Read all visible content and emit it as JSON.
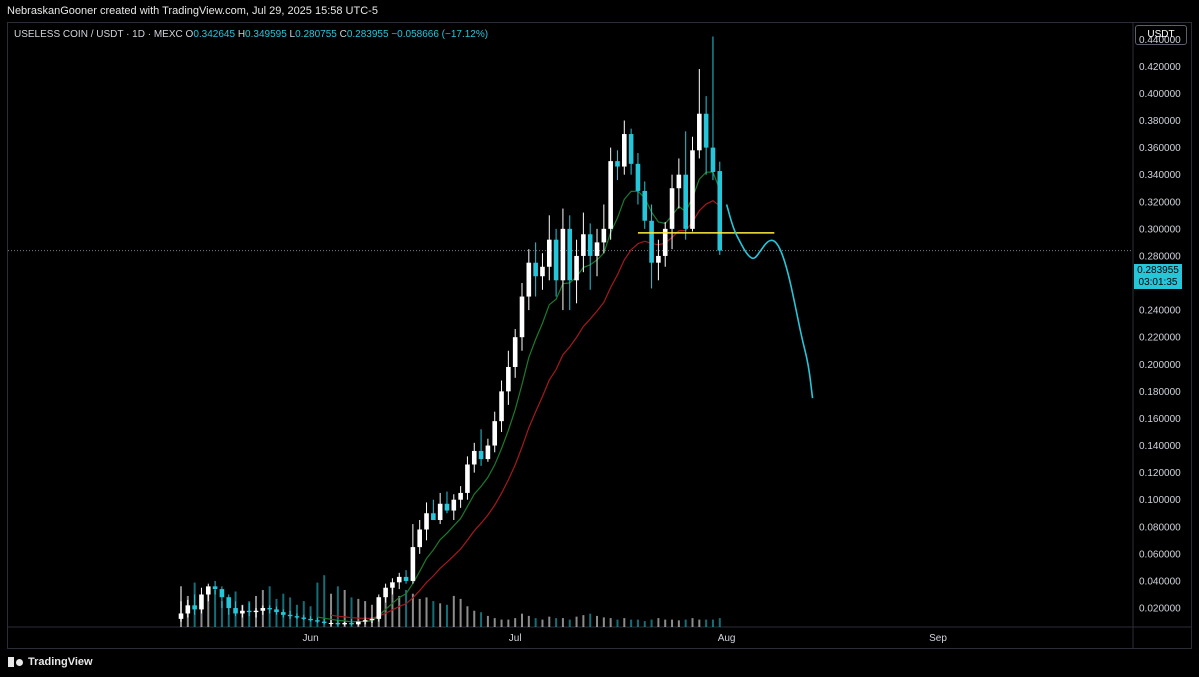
{
  "header": {
    "author_line": "NebraskanGooner created with TradingView.com, Jul 29, 2025 15:58 UTC-5"
  },
  "legend": {
    "symbol": "USELESS COIN / USDT · 1D · MEXC",
    "open_label": "O",
    "open": "0.342645",
    "high_label": "H",
    "high": "0.349595",
    "low_label": "L",
    "low": "0.280755",
    "close_label": "C",
    "close": "0.283955",
    "change": "−0.058666 (−17.12%)"
  },
  "currency": "USDT",
  "price_tag": {
    "price": "0.283955",
    "countdown": "03:01:35"
  },
  "footer": {
    "brand": "TradingView"
  },
  "colors": {
    "up": "#ffffff",
    "down": "#26c6da",
    "ma_fast": "#1b7a2c",
    "ma_slow": "#a5191e",
    "level": "#ffeb3b",
    "projection": "#26c6da"
  },
  "chart_data": {
    "type": "candlestick",
    "x_axis": {
      "ticks": [
        {
          "label": "Jun",
          "index": 19
        },
        {
          "label": "Jul",
          "index": 49
        },
        {
          "label": "Aug",
          "index": 80
        },
        {
          "label": "Sep",
          "index": 111
        }
      ]
    },
    "y_axis": {
      "ylim": [
        0.006,
        0.452
      ],
      "ticks": [
        0.02,
        0.04,
        0.06,
        0.08,
        0.1,
        0.12,
        0.14,
        0.16,
        0.18,
        0.2,
        0.22,
        0.24,
        0.26,
        0.28,
        0.3,
        0.32,
        0.34,
        0.36,
        0.38,
        0.4,
        0.42,
        0.44
      ]
    },
    "current_price": 0.283955,
    "candles": [
      {
        "o": 0.012,
        "h": 0.025,
        "l": 0.01,
        "c": 0.016
      },
      {
        "o": 0.016,
        "h": 0.026,
        "l": 0.013,
        "c": 0.022
      },
      {
        "o": 0.022,
        "h": 0.03,
        "l": 0.015,
        "c": 0.019
      },
      {
        "o": 0.019,
        "h": 0.035,
        "l": 0.016,
        "c": 0.03
      },
      {
        "o": 0.03,
        "h": 0.038,
        "l": 0.025,
        "c": 0.036
      },
      {
        "o": 0.036,
        "h": 0.04,
        "l": 0.03,
        "c": 0.034
      },
      {
        "o": 0.034,
        "h": 0.036,
        "l": 0.02,
        "c": 0.028
      },
      {
        "o": 0.028,
        "h": 0.03,
        "l": 0.015,
        "c": 0.02
      },
      {
        "o": 0.02,
        "h": 0.025,
        "l": 0.014,
        "c": 0.016
      },
      {
        "o": 0.016,
        "h": 0.022,
        "l": 0.013,
        "c": 0.018
      },
      {
        "o": 0.018,
        "h": 0.024,
        "l": 0.014,
        "c": 0.017
      },
      {
        "o": 0.017,
        "h": 0.02,
        "l": 0.013,
        "c": 0.018
      },
      {
        "o": 0.018,
        "h": 0.022,
        "l": 0.015,
        "c": 0.02
      },
      {
        "o": 0.02,
        "h": 0.022,
        "l": 0.016,
        "c": 0.019
      },
      {
        "o": 0.019,
        "h": 0.021,
        "l": 0.015,
        "c": 0.017
      },
      {
        "o": 0.017,
        "h": 0.019,
        "l": 0.013,
        "c": 0.015
      },
      {
        "o": 0.015,
        "h": 0.018,
        "l": 0.012,
        "c": 0.014
      },
      {
        "o": 0.014,
        "h": 0.016,
        "l": 0.012,
        "c": 0.013
      },
      {
        "o": 0.013,
        "h": 0.015,
        "l": 0.011,
        "c": 0.012
      },
      {
        "o": 0.012,
        "h": 0.014,
        "l": 0.01,
        "c": 0.011
      },
      {
        "o": 0.011,
        "h": 0.013,
        "l": 0.009,
        "c": 0.01
      },
      {
        "o": 0.01,
        "h": 0.012,
        "l": 0.008,
        "c": 0.009
      },
      {
        "o": 0.009,
        "h": 0.011,
        "l": 0.007,
        "c": 0.009
      },
      {
        "o": 0.009,
        "h": 0.011,
        "l": 0.007,
        "c": 0.008
      },
      {
        "o": 0.008,
        "h": 0.01,
        "l": 0.007,
        "c": 0.009
      },
      {
        "o": 0.009,
        "h": 0.012,
        "l": 0.007,
        "c": 0.008
      },
      {
        "o": 0.008,
        "h": 0.01,
        "l": 0.007,
        "c": 0.01
      },
      {
        "o": 0.01,
        "h": 0.013,
        "l": 0.008,
        "c": 0.011
      },
      {
        "o": 0.011,
        "h": 0.013,
        "l": 0.009,
        "c": 0.012
      },
      {
        "o": 0.012,
        "h": 0.03,
        "l": 0.01,
        "c": 0.028
      },
      {
        "o": 0.028,
        "h": 0.038,
        "l": 0.024,
        "c": 0.035
      },
      {
        "o": 0.035,
        "h": 0.042,
        "l": 0.03,
        "c": 0.039
      },
      {
        "o": 0.039,
        "h": 0.046,
        "l": 0.034,
        "c": 0.043
      },
      {
        "o": 0.043,
        "h": 0.048,
        "l": 0.038,
        "c": 0.04
      },
      {
        "o": 0.04,
        "h": 0.082,
        "l": 0.038,
        "c": 0.065
      },
      {
        "o": 0.065,
        "h": 0.085,
        "l": 0.06,
        "c": 0.078
      },
      {
        "o": 0.078,
        "h": 0.098,
        "l": 0.07,
        "c": 0.09
      },
      {
        "o": 0.09,
        "h": 0.1,
        "l": 0.085,
        "c": 0.085
      },
      {
        "o": 0.085,
        "h": 0.105,
        "l": 0.082,
        "c": 0.097
      },
      {
        "o": 0.097,
        "h": 0.106,
        "l": 0.09,
        "c": 0.092
      },
      {
        "o": 0.092,
        "h": 0.104,
        "l": 0.085,
        "c": 0.1
      },
      {
        "o": 0.1,
        "h": 0.11,
        "l": 0.094,
        "c": 0.105
      },
      {
        "o": 0.105,
        "h": 0.132,
        "l": 0.1,
        "c": 0.126
      },
      {
        "o": 0.126,
        "h": 0.142,
        "l": 0.12,
        "c": 0.136
      },
      {
        "o": 0.136,
        "h": 0.152,
        "l": 0.125,
        "c": 0.13
      },
      {
        "o": 0.13,
        "h": 0.145,
        "l": 0.128,
        "c": 0.14
      },
      {
        "o": 0.14,
        "h": 0.165,
        "l": 0.135,
        "c": 0.158
      },
      {
        "o": 0.158,
        "h": 0.188,
        "l": 0.15,
        "c": 0.18
      },
      {
        "o": 0.18,
        "h": 0.21,
        "l": 0.17,
        "c": 0.198
      },
      {
        "o": 0.198,
        "h": 0.226,
        "l": 0.19,
        "c": 0.22
      },
      {
        "o": 0.22,
        "h": 0.26,
        "l": 0.21,
        "c": 0.25
      },
      {
        "o": 0.25,
        "h": 0.285,
        "l": 0.24,
        "c": 0.275
      },
      {
        "o": 0.275,
        "h": 0.29,
        "l": 0.25,
        "c": 0.265
      },
      {
        "o": 0.265,
        "h": 0.282,
        "l": 0.255,
        "c": 0.272
      },
      {
        "o": 0.272,
        "h": 0.31,
        "l": 0.262,
        "c": 0.292
      },
      {
        "o": 0.292,
        "h": 0.3,
        "l": 0.25,
        "c": 0.262
      },
      {
        "o": 0.262,
        "h": 0.315,
        "l": 0.24,
        "c": 0.3
      },
      {
        "o": 0.3,
        "h": 0.31,
        "l": 0.24,
        "c": 0.262
      },
      {
        "o": 0.262,
        "h": 0.292,
        "l": 0.245,
        "c": 0.28
      },
      {
        "o": 0.28,
        "h": 0.312,
        "l": 0.268,
        "c": 0.296
      },
      {
        "o": 0.296,
        "h": 0.304,
        "l": 0.255,
        "c": 0.28
      },
      {
        "o": 0.28,
        "h": 0.3,
        "l": 0.265,
        "c": 0.29
      },
      {
        "o": 0.29,
        "h": 0.318,
        "l": 0.282,
        "c": 0.3
      },
      {
        "o": 0.3,
        "h": 0.36,
        "l": 0.292,
        "c": 0.35
      },
      {
        "o": 0.35,
        "h": 0.358,
        "l": 0.336,
        "c": 0.346
      },
      {
        "o": 0.346,
        "h": 0.38,
        "l": 0.34,
        "c": 0.37
      },
      {
        "o": 0.37,
        "h": 0.374,
        "l": 0.34,
        "c": 0.348
      },
      {
        "o": 0.348,
        "h": 0.356,
        "l": 0.318,
        "c": 0.328
      },
      {
        "o": 0.328,
        "h": 0.335,
        "l": 0.3,
        "c": 0.306
      },
      {
        "o": 0.306,
        "h": 0.318,
        "l": 0.256,
        "c": 0.275
      },
      {
        "o": 0.275,
        "h": 0.292,
        "l": 0.262,
        "c": 0.28
      },
      {
        "o": 0.28,
        "h": 0.305,
        "l": 0.272,
        "c": 0.3
      },
      {
        "o": 0.3,
        "h": 0.34,
        "l": 0.285,
        "c": 0.33
      },
      {
        "o": 0.33,
        "h": 0.352,
        "l": 0.315,
        "c": 0.34
      },
      {
        "o": 0.34,
        "h": 0.372,
        "l": 0.292,
        "c": 0.3
      },
      {
        "o": 0.3,
        "h": 0.368,
        "l": 0.298,
        "c": 0.358
      },
      {
        "o": 0.358,
        "h": 0.418,
        "l": 0.352,
        "c": 0.385
      },
      {
        "o": 0.385,
        "h": 0.398,
        "l": 0.34,
        "c": 0.36
      },
      {
        "o": 0.36,
        "h": 0.442,
        "l": 0.336,
        "c": 0.342
      },
      {
        "o": 0.342645,
        "h": 0.349595,
        "l": 0.280755,
        "c": 0.283955
      }
    ],
    "volume": [
      0.55,
      0.42,
      0.6,
      0.38,
      0.45,
      0.5,
      0.35,
      0.4,
      0.48,
      0.3,
      0.35,
      0.42,
      0.5,
      0.55,
      0.38,
      0.45,
      0.4,
      0.3,
      0.35,
      0.28,
      0.6,
      0.7,
      0.45,
      0.55,
      0.5,
      0.4,
      0.38,
      0.35,
      0.3,
      0.32,
      0.48,
      0.55,
      0.42,
      0.5,
      0.45,
      0.38,
      0.4,
      0.35,
      0.32,
      0.3,
      0.42,
      0.38,
      0.28,
      0.22,
      0.2,
      0.15,
      0.12,
      0.1,
      0.1,
      0.12,
      0.18,
      0.15,
      0.12,
      0.1,
      0.14,
      0.12,
      0.12,
      0.1,
      0.14,
      0.16,
      0.18,
      0.15,
      0.13,
      0.12,
      0.1,
      0.12,
      0.1,
      0.1,
      0.08,
      0.1,
      0.12,
      0.1,
      0.1,
      0.09,
      0.1,
      0.12,
      0.1,
      0.1,
      0.1,
      0.12
    ],
    "ma_fast_from": 20,
    "ma_slow_from": 22,
    "level": {
      "price": 0.297,
      "from_index": 67,
      "to_index": 87
    },
    "projection": [
      [
        80,
        0.318
      ],
      [
        81,
        0.3
      ],
      [
        82,
        0.29
      ],
      [
        83,
        0.281
      ],
      [
        84,
        0.277
      ],
      [
        85,
        0.284
      ],
      [
        86,
        0.291
      ],
      [
        87,
        0.292
      ],
      [
        88,
        0.284
      ],
      [
        89,
        0.268
      ],
      [
        90,
        0.245
      ],
      [
        91,
        0.22
      ],
      [
        92,
        0.2
      ],
      [
        92.6,
        0.175
      ]
    ]
  }
}
